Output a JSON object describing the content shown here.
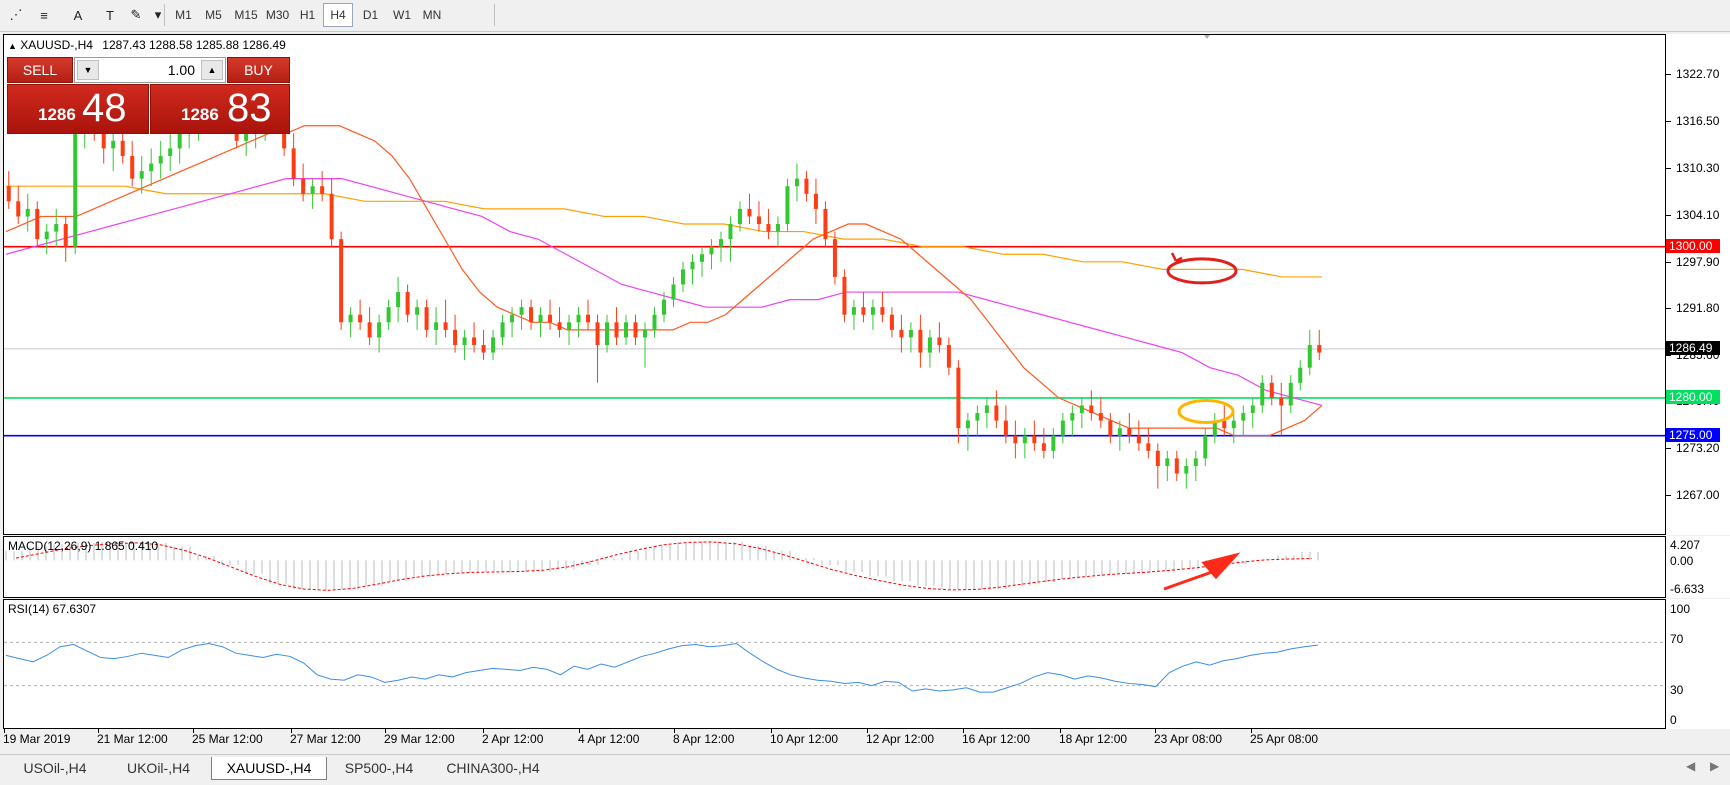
{
  "toolbar": {
    "tools": [
      {
        "name": "fibonacci-fan-icon",
        "glyph": "⋰"
      },
      {
        "name": "fibonacci-lines-icon",
        "glyph": "≡"
      },
      {
        "name": "text-tool-icon",
        "glyph": "A"
      },
      {
        "name": "text-label-tool-icon",
        "glyph": "T"
      },
      {
        "name": "arrows-tool-icon",
        "glyph": "✎"
      },
      {
        "name": "dropdown-arrow-icon",
        "glyph": "▾"
      }
    ],
    "timeframes": [
      "M1",
      "M5",
      "M15",
      "M30",
      "H1",
      "H4",
      "D1",
      "W1",
      "MN"
    ],
    "active_timeframe": "H4"
  },
  "chart_header": {
    "symbol": "XAUUSD-,H4",
    "ohlc": "1287.43 1288.58 1285.88 1286.49"
  },
  "trade_panel": {
    "sell_label": "SELL",
    "buy_label": "BUY",
    "lot_value": "1.00",
    "sell_price_small": "1286",
    "sell_price_big": "48",
    "buy_price_small": "1286",
    "buy_price_big": "83"
  },
  "price_axis": {
    "labels": [
      "1322.70",
      "1316.50",
      "1310.30",
      "1304.10",
      "1297.90",
      "1291.80",
      "1285.60",
      "1279.40",
      "1273.20",
      "1267.00"
    ]
  },
  "hlines": [
    {
      "label": "1300.00",
      "color": "#ff0000",
      "price": 1300.0
    },
    {
      "label": "1280.00",
      "color": "#00e060",
      "price": 1280.0
    },
    {
      "label": "1275.00",
      "color": "#0000ff",
      "price": 1275.0
    },
    {
      "label": "1286.49",
      "color": "#000000",
      "price": 1286.49
    }
  ],
  "macd": {
    "label": "MACD(12,26,9) 1.865 0.410",
    "axis": [
      "4.207",
      "0.00",
      "-6.633"
    ]
  },
  "rsi": {
    "label": "RSI(14) 67.6307",
    "axis": [
      "100",
      "70",
      "30",
      "0"
    ]
  },
  "time_axis": [
    "19 Mar 2019",
    "21 Mar 12:00",
    "25 Mar 12:00",
    "27 Mar 12:00",
    "29 Mar 12:00",
    "2 Apr 12:00",
    "4 Apr 12:00",
    "8 Apr 12:00",
    "10 Apr 12:00",
    "12 Apr 12:00",
    "16 Apr 12:00",
    "18 Apr 12:00",
    "23 Apr 08:00",
    "25 Apr 08:00"
  ],
  "tabs": [
    "USOil-,H4",
    "UKOil-,H4",
    "XAUUSD-,H4",
    "SP500-,H4",
    "CHINA300-,H4"
  ],
  "active_tab": "XAUUSD-,H4",
  "colors": {
    "bull": "#32c832",
    "bear": "#ff3c14",
    "ma_fast": "#ff5a1e",
    "ma_mid": "#ee44ee",
    "ma_slow": "#ffa000",
    "rsi_line": "#3a8ee6",
    "macd_signal": "#ff0000"
  },
  "chart_data": {
    "type": "candlestick",
    "symbol": "XAUUSD-",
    "timeframe": "H4",
    "ylim": [
      1262,
      1328
    ],
    "candles": [
      [
        1308,
        1310,
        1305,
        1306
      ],
      [
        1306,
        1308,
        1303,
        1304
      ],
      [
        1304,
        1307,
        1302,
        1305
      ],
      [
        1305,
        1306,
        1300,
        1301
      ],
      [
        1301,
        1303,
        1299,
        1302
      ],
      [
        1302,
        1305,
        1300,
        1303
      ],
      [
        1303,
        1304,
        1298,
        1300
      ],
      [
        1300,
        1318,
        1299,
        1316
      ],
      [
        1316,
        1319,
        1313,
        1317
      ],
      [
        1317,
        1318,
        1314,
        1315
      ],
      [
        1315,
        1317,
        1311,
        1313
      ],
      [
        1313,
        1316,
        1310,
        1314
      ],
      [
        1314,
        1317,
        1311,
        1312
      ],
      [
        1312,
        1314,
        1308,
        1309
      ],
      [
        1309,
        1312,
        1307,
        1310
      ],
      [
        1310,
        1313,
        1308,
        1311
      ],
      [
        1311,
        1314,
        1309,
        1312
      ],
      [
        1312,
        1315,
        1310,
        1313
      ],
      [
        1313,
        1316,
        1311,
        1315
      ],
      [
        1315,
        1317,
        1313,
        1316
      ],
      [
        1316,
        1318,
        1314,
        1317
      ],
      [
        1317,
        1319,
        1315,
        1318
      ],
      [
        1318,
        1320,
        1316,
        1319
      ],
      [
        1319,
        1320,
        1316,
        1317
      ],
      [
        1317,
        1319,
        1313,
        1314
      ],
      [
        1314,
        1316,
        1312,
        1315
      ],
      [
        1315,
        1317,
        1313,
        1316
      ],
      [
        1316,
        1318,
        1314,
        1317
      ],
      [
        1317,
        1319,
        1315,
        1318
      ],
      [
        1318,
        1319,
        1312,
        1313
      ],
      [
        1313,
        1315,
        1308,
        1309
      ],
      [
        1309,
        1311,
        1306,
        1307
      ],
      [
        1307,
        1309,
        1305,
        1308
      ],
      [
        1308,
        1310,
        1306,
        1307
      ],
      [
        1307,
        1309,
        1300,
        1301
      ],
      [
        1301,
        1302,
        1289,
        1290
      ],
      [
        1290,
        1292,
        1288,
        1291
      ],
      [
        1291,
        1293,
        1289,
        1290
      ],
      [
        1290,
        1292,
        1287,
        1288
      ],
      [
        1288,
        1291,
        1286,
        1290
      ],
      [
        1290,
        1293,
        1289,
        1292
      ],
      [
        1292,
        1296,
        1290,
        1294
      ],
      [
        1294,
        1295,
        1290,
        1291
      ],
      [
        1291,
        1293,
        1289,
        1292
      ],
      [
        1292,
        1293,
        1288,
        1289
      ],
      [
        1289,
        1292,
        1287,
        1290
      ],
      [
        1290,
        1293,
        1288,
        1289
      ],
      [
        1289,
        1291,
        1286,
        1287
      ],
      [
        1287,
        1289,
        1285,
        1288
      ],
      [
        1288,
        1290,
        1286,
        1287
      ],
      [
        1287,
        1289,
        1285,
        1286
      ],
      [
        1286,
        1289,
        1285,
        1288
      ],
      [
        1288,
        1291,
        1287,
        1290
      ],
      [
        1290,
        1292,
        1288,
        1291
      ],
      [
        1291,
        1293,
        1289,
        1292
      ],
      [
        1292,
        1293,
        1289,
        1290
      ],
      [
        1290,
        1292,
        1288,
        1291
      ],
      [
        1291,
        1293,
        1289,
        1290
      ],
      [
        1290,
        1292,
        1288,
        1289
      ],
      [
        1289,
        1291,
        1287,
        1290
      ],
      [
        1290,
        1292,
        1288,
        1291
      ],
      [
        1291,
        1293,
        1289,
        1290
      ],
      [
        1290,
        1291,
        1282,
        1287
      ],
      [
        1287,
        1291,
        1286,
        1290
      ],
      [
        1290,
        1292,
        1287,
        1288
      ],
      [
        1288,
        1291,
        1287,
        1290
      ],
      [
        1290,
        1291,
        1287,
        1288
      ],
      [
        1288,
        1290,
        1284,
        1289
      ],
      [
        1289,
        1292,
        1288,
        1291
      ],
      [
        1291,
        1294,
        1290,
        1293
      ],
      [
        1293,
        1296,
        1292,
        1295
      ],
      [
        1295,
        1298,
        1294,
        1297
      ],
      [
        1297,
        1299,
        1295,
        1298
      ],
      [
        1298,
        1300,
        1296,
        1299
      ],
      [
        1299,
        1301,
        1297,
        1300
      ],
      [
        1300,
        1302,
        1298,
        1301
      ],
      [
        1301,
        1304,
        1298,
        1303
      ],
      [
        1303,
        1306,
        1302,
        1305
      ],
      [
        1305,
        1307,
        1303,
        1304
      ],
      [
        1304,
        1306,
        1302,
        1303
      ],
      [
        1303,
        1305,
        1301,
        1302
      ],
      [
        1302,
        1304,
        1300,
        1303
      ],
      [
        1303,
        1309,
        1302,
        1308
      ],
      [
        1308,
        1311,
        1306,
        1309
      ],
      [
        1309,
        1310,
        1306,
        1307
      ],
      [
        1307,
        1309,
        1303,
        1305
      ],
      [
        1305,
        1306,
        1300,
        1301
      ],
      [
        1301,
        1302,
        1295,
        1296
      ],
      [
        1296,
        1297,
        1290,
        1291
      ],
      [
        1291,
        1293,
        1289,
        1292
      ],
      [
        1292,
        1294,
        1290,
        1291
      ],
      [
        1291,
        1293,
        1289,
        1292
      ],
      [
        1292,
        1294,
        1290,
        1291
      ],
      [
        1291,
        1292,
        1288,
        1289
      ],
      [
        1289,
        1291,
        1286,
        1288
      ],
      [
        1288,
        1290,
        1286,
        1289
      ],
      [
        1289,
        1291,
        1284,
        1286
      ],
      [
        1286,
        1289,
        1284,
        1288
      ],
      [
        1288,
        1290,
        1286,
        1287
      ],
      [
        1287,
        1288,
        1283,
        1284
      ],
      [
        1284,
        1285,
        1274,
        1276
      ],
      [
        1276,
        1278,
        1273,
        1277
      ],
      [
        1277,
        1279,
        1275,
        1278
      ],
      [
        1278,
        1280,
        1276,
        1279
      ],
      [
        1279,
        1281,
        1276,
        1277
      ],
      [
        1277,
        1279,
        1274,
        1275
      ],
      [
        1275,
        1277,
        1272,
        1274
      ],
      [
        1274,
        1276,
        1272,
        1275
      ],
      [
        1275,
        1277,
        1273,
        1274
      ],
      [
        1274,
        1276,
        1272,
        1273
      ],
      [
        1273,
        1276,
        1272,
        1275
      ],
      [
        1275,
        1278,
        1274,
        1277
      ],
      [
        1277,
        1279,
        1275,
        1278
      ],
      [
        1278,
        1280,
        1276,
        1279
      ],
      [
        1279,
        1281,
        1277,
        1278
      ],
      [
        1278,
        1280,
        1276,
        1277
      ],
      [
        1277,
        1278,
        1274,
        1275
      ],
      [
        1275,
        1277,
        1273,
        1276
      ],
      [
        1276,
        1278,
        1274,
        1275
      ],
      [
        1275,
        1277,
        1273,
        1274
      ],
      [
        1274,
        1276,
        1272,
        1273
      ],
      [
        1273,
        1274,
        1268,
        1271
      ],
      [
        1271,
        1273,
        1269,
        1272
      ],
      [
        1272,
        1273,
        1269,
        1270
      ],
      [
        1270,
        1272,
        1268,
        1271
      ],
      [
        1271,
        1273,
        1269,
        1272
      ],
      [
        1272,
        1276,
        1271,
        1275
      ],
      [
        1275,
        1278,
        1274,
        1277
      ],
      [
        1277,
        1279,
        1275,
        1276
      ],
      [
        1276,
        1278,
        1274,
        1277
      ],
      [
        1277,
        1279,
        1275,
        1278
      ],
      [
        1278,
        1280,
        1276,
        1279
      ],
      [
        1279,
        1283,
        1278,
        1282
      ],
      [
        1282,
        1283,
        1279,
        1280
      ],
      [
        1280,
        1282,
        1275,
        1279
      ],
      [
        1279,
        1283,
        1278,
        1282
      ],
      [
        1282,
        1285,
        1281,
        1284
      ],
      [
        1284,
        1289,
        1283,
        1287
      ],
      [
        1287,
        1289,
        1285,
        1286
      ]
    ],
    "ma_fast": [
      1302,
      1303,
      1304,
      1304,
      1304,
      1305,
      1306,
      1307,
      1308,
      1309,
      1310,
      1311,
      1312,
      1313,
      1314,
      1315,
      1315,
      1316,
      1316,
      1316,
      1315,
      1314,
      1312,
      1309,
      1305,
      1301,
      1297,
      1294,
      1292,
      1291,
      1290,
      1290,
      1289,
      1289,
      1289,
      1289,
      1289,
      1289,
      1289,
      1290,
      1290,
      1291,
      1293,
      1295,
      1297,
      1299,
      1301,
      1302,
      1303,
      1303,
      1302,
      1301,
      1299,
      1297,
      1295,
      1293,
      1290,
      1287,
      1284,
      1282,
      1280,
      1279,
      1278,
      1277,
      1276,
      1276,
      1276,
      1276,
      1276,
      1276,
      1275,
      1275,
      1275,
      1276,
      1277,
      1279
    ],
    "ma_mid": [
      1299,
      1300,
      1301,
      1302,
      1303,
      1304,
      1305,
      1306,
      1307,
      1308,
      1309,
      1309,
      1309,
      1308,
      1307,
      1306,
      1305,
      1304,
      1302,
      1301,
      1299,
      1297,
      1295,
      1294,
      1293,
      1292,
      1292,
      1292,
      1293,
      1293,
      1294,
      1294,
      1294,
      1294,
      1294,
      1293,
      1292,
      1291,
      1290,
      1289,
      1288,
      1287,
      1286,
      1284,
      1283,
      1281,
      1280,
      1279
    ],
    "ma_slow": [
      1308,
      1308,
      1308,
      1308,
      1307,
      1307,
      1307,
      1307,
      1307,
      1306,
      1306,
      1306,
      1305,
      1305,
      1305,
      1304,
      1304,
      1303,
      1303,
      1302,
      1302,
      1301,
      1301,
      1300,
      1300,
      1299,
      1299,
      1298,
      1298,
      1297,
      1297,
      1297,
      1296,
      1296
    ],
    "macd": [
      2,
      3,
      3.5,
      3.8,
      4,
      4,
      3.8,
      3,
      1,
      -1,
      -3,
      -5,
      -6.2,
      -6.5,
      -6.3,
      -5.5,
      -4.5,
      -3.6,
      -3,
      -2.6,
      -2.5,
      -2.6,
      -2.5,
      -2,
      -1,
      0.5,
      2,
      3.2,
      4,
      4.2,
      4,
      3.2,
      2,
      0.5,
      -1,
      -2.5,
      -3.5,
      -4.5,
      -5.5,
      -6.2,
      -6.4,
      -6.2,
      -5.5,
      -4.8,
      -4,
      -3.5,
      -3,
      -2.7,
      -2.4,
      -2,
      -1.5,
      -0.8,
      0,
      1,
      1.865
    ],
    "macd_signal": [
      0.5,
      1.5,
      2.5,
      3.2,
      3.6,
      3.8,
      3.4,
      2.2,
      0.5,
      -1.5,
      -3.5,
      -5.2,
      -6.2,
      -6.5,
      -6.1,
      -5.2,
      -4.2,
      -3.4,
      -2.9,
      -2.6,
      -2.5,
      -2.4,
      -2.1,
      -1.4,
      -0.2,
      1.2,
      2.4,
      3.4,
      3.9,
      4,
      3.6,
      2.6,
      1.2,
      -0.4,
      -2,
      -3.3,
      -4.4,
      -5.4,
      -6.1,
      -6.4,
      -6.3,
      -5.8,
      -5.1,
      -4.4,
      -3.8,
      -3.3,
      -2.9,
      -2.6,
      -2.2,
      -1.7,
      -1.1,
      -0.4,
      0.1,
      0.3,
      0.41
    ],
    "rsi": [
      58,
      55,
      52,
      58,
      66,
      68,
      62,
      56,
      55,
      57,
      60,
      58,
      56,
      63,
      67,
      69,
      66,
      60,
      58,
      56,
      59,
      57,
      51,
      40,
      36,
      35,
      40,
      38,
      33,
      35,
      38,
      36,
      40,
      38,
      42,
      44,
      46,
      45,
      44,
      47,
      45,
      40,
      48,
      45,
      50,
      47,
      52,
      57,
      60,
      64,
      67,
      68,
      66,
      67,
      69,
      60,
      52,
      45,
      40,
      37,
      35,
      34,
      32,
      33,
      30,
      34,
      33,
      25,
      27,
      25,
      26,
      28,
      24,
      24,
      28,
      32,
      38,
      42,
      40,
      36,
      39,
      37,
      34,
      32,
      31,
      29,
      42,
      48,
      52,
      49,
      53,
      55,
      58,
      60,
      61,
      64,
      66,
      67.6
    ]
  }
}
